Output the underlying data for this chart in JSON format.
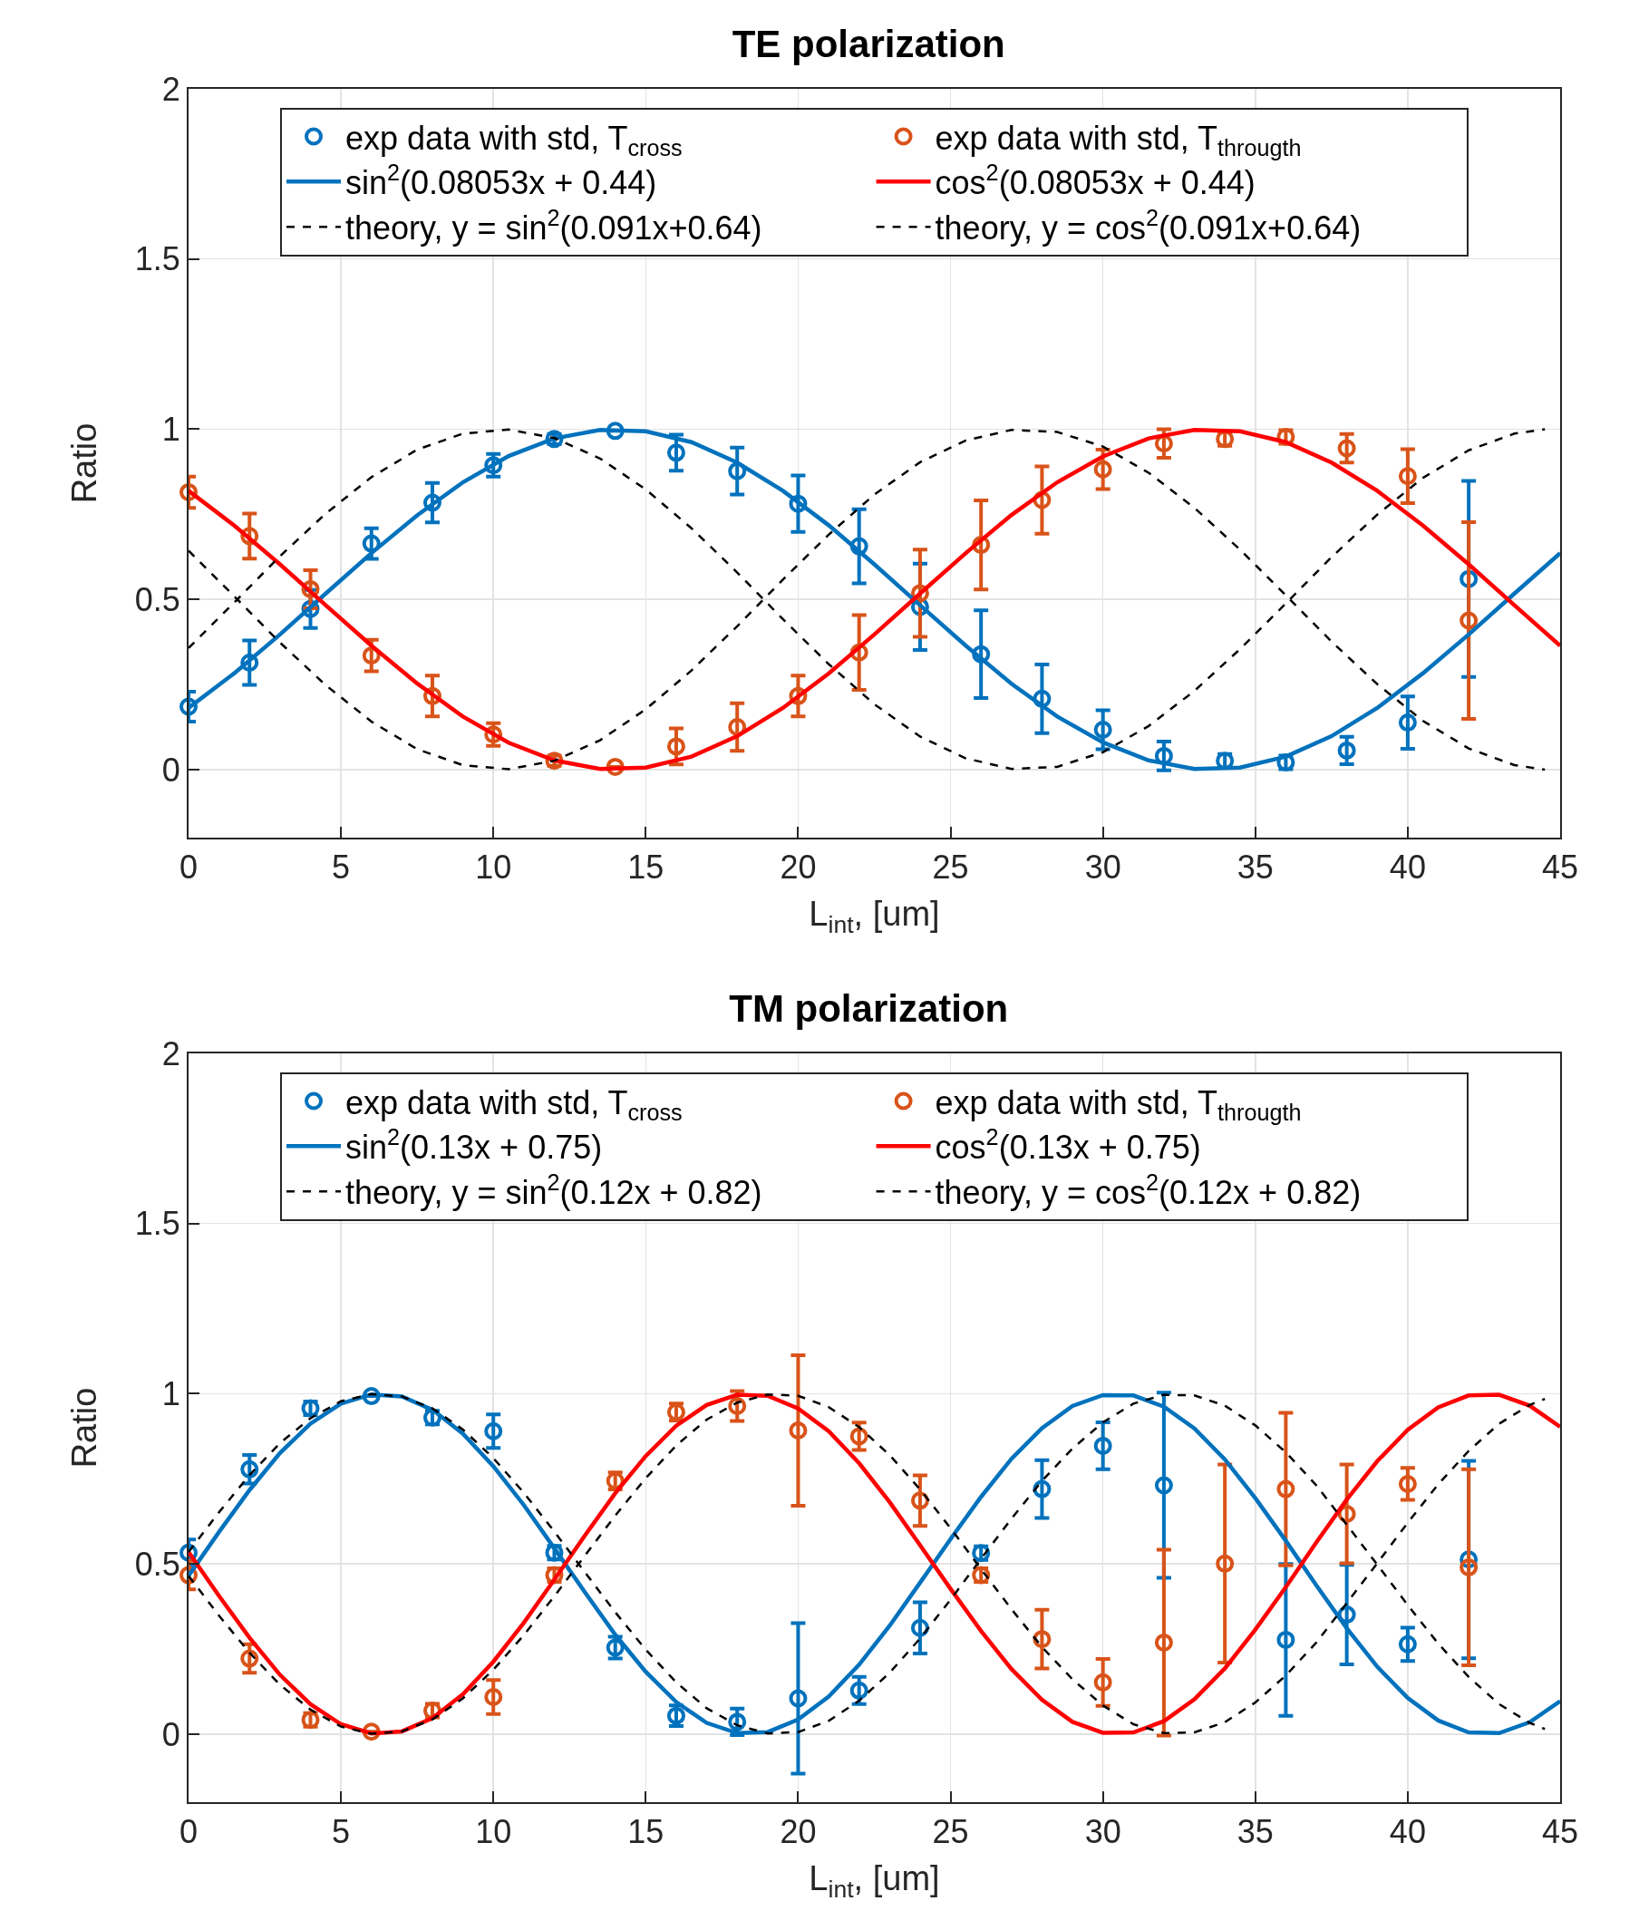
{
  "chart_data": [
    {
      "type": "scatter",
      "title": "TE polarization",
      "xlabel": "L$_{int}$, [um]",
      "ylabel": "Ratio",
      "xlim": [
        0,
        45
      ],
      "xticks": [
        0,
        5,
        10,
        15,
        20,
        25,
        30,
        35,
        40,
        45
      ],
      "ylim": [
        -0.2,
        2
      ],
      "yticks": [
        0,
        0.5,
        1,
        1.5,
        2
      ],
      "grid": true,
      "legend": "top",
      "x": [
        0,
        2,
        4,
        6,
        8,
        10,
        12,
        14,
        16,
        18,
        20,
        22,
        24,
        26,
        28,
        30,
        32,
        34,
        36,
        38,
        40,
        42
      ],
      "series": [
        {
          "name": "exp data with std, T$_{cross}$",
          "color": "#0072bd",
          "marker": "circle",
          "values": [
            0.185,
            0.314,
            0.472,
            0.664,
            0.784,
            0.894,
            0.971,
            0.995,
            0.931,
            0.877,
            0.781,
            0.656,
            0.478,
            0.339,
            0.208,
            0.117,
            0.04,
            0.026,
            0.021,
            0.056,
            0.138,
            0.56
          ],
          "errors": [
            0.044,
            0.065,
            0.056,
            0.045,
            0.058,
            0.033,
            0.015,
            null,
            0.053,
            0.069,
            0.083,
            0.109,
            0.127,
            0.129,
            0.101,
            0.057,
            0.042,
            0.02,
            0.02,
            0.04,
            0.077,
            0.288
          ]
        },
        {
          "name": "exp data with std, T$_{througth}$",
          "color": "#d95319",
          "marker": "circle",
          "values": [
            0.815,
            0.686,
            0.53,
            0.335,
            0.216,
            0.103,
            0.026,
            0.008,
            0.068,
            0.125,
            0.216,
            0.344,
            0.518,
            0.66,
            0.792,
            0.882,
            0.958,
            0.971,
            0.977,
            0.944,
            0.862,
            0.438
          ],
          "errors": [
            0.046,
            0.066,
            0.056,
            0.046,
            0.06,
            0.033,
            0.015,
            null,
            0.053,
            0.07,
            0.06,
            0.11,
            0.128,
            0.131,
            0.099,
            0.058,
            0.042,
            0.02,
            0.02,
            0.042,
            0.079,
            0.289
          ]
        },
        {
          "type": "line",
          "name": "sin$^{2}$(0.08053x + 0.44)",
          "color": "#0072bd",
          "line_style": "solid",
          "x": [
            0,
            1.5,
            3,
            4.5,
            6,
            7.5,
            9,
            10.5,
            12,
            13.5,
            15,
            16.5,
            18,
            19.5,
            21,
            22.5,
            24,
            25.5,
            27,
            28.5,
            30,
            31.5,
            33,
            34.5,
            36,
            37.5,
            39,
            40.5,
            42,
            43.5,
            45
          ],
          "values": [
            0.181,
            0.283,
            0.397,
            0.517,
            0.636,
            0.747,
            0.844,
            0.921,
            0.973,
            0.998,
            0.994,
            0.962,
            0.902,
            0.819,
            0.718,
            0.603,
            0.483,
            0.364,
            0.252,
            0.156,
            0.08,
            0.027,
            0.002,
            0.006,
            0.038,
            0.098,
            0.181,
            0.283,
            0.397,
            0.517,
            0.636
          ]
        },
        {
          "type": "line",
          "name": "cos$^{2}$(0.08053x + 0.44)",
          "color": "#ff0000",
          "line_style": "solid",
          "x": [
            0,
            1.5,
            3,
            4.5,
            6,
            7.5,
            9,
            10.5,
            12,
            13.5,
            15,
            16.5,
            18,
            19.5,
            21,
            22.5,
            24,
            25.5,
            27,
            28.5,
            30,
            31.5,
            33,
            34.5,
            36,
            37.5,
            39,
            40.5,
            42,
            43.5,
            45
          ],
          "values": [
            0.819,
            0.717,
            0.603,
            0.483,
            0.364,
            0.253,
            0.156,
            0.079,
            0.027,
            0.002,
            0.006,
            0.038,
            0.098,
            0.181,
            0.282,
            0.397,
            0.517,
            0.636,
            0.748,
            0.844,
            0.92,
            0.973,
            0.998,
            0.994,
            0.962,
            0.902,
            0.819,
            0.717,
            0.603,
            0.483,
            0.364
          ]
        },
        {
          "type": "line",
          "name": "theory, y = sin$^{2}$(0.091x+0.64)",
          "color": "#000000",
          "line_style": "dashed",
          "x": [
            0,
            1.5,
            3,
            4.5,
            6,
            7.5,
            9,
            10.5,
            12,
            13.5,
            15,
            16.5,
            18,
            19.5,
            21,
            22.5,
            24,
            25.5,
            27,
            28.5,
            30,
            31.5,
            33,
            34.5,
            36,
            37.5,
            39,
            40.5,
            42,
            43.5,
            44.5
          ],
          "values": [
            0.357,
            0.491,
            0.627,
            0.752,
            0.859,
            0.94,
            0.987,
            0.999,
            0.974,
            0.914,
            0.823,
            0.709,
            0.579,
            0.442,
            0.31,
            0.192,
            0.097,
            0.033,
            0.002,
            0.008,
            0.051,
            0.128,
            0.231,
            0.354,
            0.488,
            0.624,
            0.749,
            0.857,
            0.938,
            0.987,
            1
          ]
        },
        {
          "type": "line",
          "name": "theory, y = cos$^{2}$(0.091x+0.64)",
          "color": "#000000",
          "line_style": "dashed",
          "x": [
            0,
            1.5,
            3,
            4.5,
            6,
            7.5,
            9,
            10.5,
            12,
            13.5,
            15,
            16.5,
            18,
            19.5,
            21,
            22.5,
            24,
            25.5,
            27,
            28.5,
            30,
            31.5,
            33,
            34.5,
            36,
            37.5,
            39,
            40.5,
            42,
            43.5,
            44.5
          ],
          "values": [
            0.643,
            0.509,
            0.373,
            0.248,
            0.141,
            0.06,
            0.013,
            0.001,
            0.026,
            0.086,
            0.177,
            0.291,
            0.421,
            0.558,
            0.69,
            0.808,
            0.903,
            0.967,
            0.998,
            0.992,
            0.949,
            0.872,
            0.769,
            0.646,
            0.512,
            0.376,
            0.251,
            0.143,
            0.062,
            0.013,
            0
          ]
        }
      ]
    },
    {
      "type": "scatter",
      "title": "TM polarization",
      "xlabel": "L$_{int}$, [um]",
      "ylabel": "Ratio",
      "xlim": [
        0,
        45
      ],
      "xticks": [
        0,
        5,
        10,
        15,
        20,
        25,
        30,
        35,
        40,
        45
      ],
      "ylim": [
        -0.2,
        2
      ],
      "yticks": [
        0,
        0.5,
        1,
        1.5,
        2
      ],
      "grid": true,
      "legend": "top",
      "x": [
        0,
        2,
        4,
        6,
        8,
        10,
        12,
        14,
        16,
        18,
        20,
        22,
        24,
        26,
        28,
        30,
        32,
        34,
        36,
        38,
        40,
        42
      ],
      "series": [
        {
          "name": "exp data with std, T$_{cross}$",
          "color": "#0072bd",
          "marker": "circle",
          "values": [
            0.533,
            0.778,
            0.957,
            0.993,
            0.93,
            0.89,
            0.533,
            0.254,
            0.054,
            0.036,
            0.105,
            0.128,
            0.312,
            0.532,
            0.72,
            0.847,
            0.731,
            null,
            0.277,
            0.351,
            0.264,
            0.513
          ],
          "errors": [
            0.039,
            0.042,
            0.02,
            null,
            0.02,
            0.049,
            0.02,
            0.032,
            0.03,
            0.039,
            0.221,
            0.04,
            0.075,
            0.02,
            0.085,
            0.069,
            0.272,
            null,
            0.223,
            0.146,
            0.049,
            0.29
          ]
        },
        {
          "name": "exp data with std, T$_{througth}$",
          "color": "#d95319",
          "marker": "circle",
          "values": [
            0.467,
            0.222,
            0.042,
            0.007,
            0.069,
            0.109,
            0.467,
            0.744,
            0.946,
            0.964,
            0.892,
            0.875,
            0.686,
            0.467,
            0.279,
            0.152,
            0.269,
            0.501,
            0.72,
            0.647,
            0.735,
            0.49
          ],
          "errors": [
            0.042,
            0.042,
            0.02,
            null,
            0.02,
            0.05,
            0.02,
            0.025,
            0.025,
            0.044,
            0.221,
            0.04,
            0.074,
            0.02,
            0.086,
            0.069,
            0.273,
            0.291,
            0.224,
            0.145,
            0.047,
            0.288
          ]
        },
        {
          "type": "line",
          "name": "sin$^{2}$(0.13x + 0.75)",
          "color": "#0072bd",
          "line_style": "solid",
          "x": [
            0,
            1,
            2,
            3,
            4,
            5,
            6,
            7,
            8,
            9,
            10,
            11,
            12,
            13,
            14,
            15,
            16,
            17,
            18,
            19,
            20,
            21,
            22,
            23,
            24,
            25,
            26,
            27,
            28,
            29,
            30,
            31,
            32,
            33,
            34,
            35,
            36,
            37,
            38,
            39,
            40,
            41,
            42,
            43,
            44,
            45
          ],
          "values": [
            0.465,
            0.594,
            0.717,
            0.826,
            0.912,
            0.971,
            0.998,
            0.992,
            0.953,
            0.883,
            0.787,
            0.673,
            0.546,
            0.417,
            0.292,
            0.183,
            0.094,
            0.033,
            0.003,
            0.006,
            0.043,
            0.11,
            0.204,
            0.318,
            0.445,
            0.573,
            0.697,
            0.809,
            0.899,
            0.964,
            0.996,
            0.995,
            0.962,
            0.898,
            0.807,
            0.693,
            0.568,
            0.437,
            0.311,
            0.198,
            0.106,
            0.04,
            0.005,
            0.003,
            0.035,
            0.097
          ]
        },
        {
          "type": "line",
          "name": "cos$^{2}$(0.13x + 0.75)",
          "color": "#ff0000",
          "line_style": "solid",
          "x": [
            0,
            1,
            2,
            3,
            4,
            5,
            6,
            7,
            8,
            9,
            10,
            11,
            12,
            13,
            14,
            15,
            16,
            17,
            18,
            19,
            20,
            21,
            22,
            23,
            24,
            25,
            26,
            27,
            28,
            29,
            30,
            31,
            32,
            33,
            34,
            35,
            36,
            37,
            38,
            39,
            40,
            41,
            42,
            43,
            44,
            45
          ],
          "values": [
            0.535,
            0.406,
            0.283,
            0.174,
            0.088,
            0.029,
            0.002,
            0.008,
            0.047,
            0.117,
            0.213,
            0.327,
            0.454,
            0.583,
            0.708,
            0.817,
            0.906,
            0.967,
            0.997,
            0.994,
            0.957,
            0.89,
            0.796,
            0.682,
            0.555,
            0.427,
            0.303,
            0.191,
            0.101,
            0.036,
            0.004,
            0.005,
            0.038,
            0.102,
            0.193,
            0.307,
            0.432,
            0.563,
            0.689,
            0.802,
            0.894,
            0.96,
            0.995,
            0.997,
            0.965,
            0.903
          ]
        },
        {
          "type": "line",
          "name": "theory, y = sin$^{2}$(0.12x + 0.82)",
          "color": "#000000",
          "line_style": "dashed",
          "x": [
            0,
            1,
            2,
            3,
            4,
            5,
            6,
            7,
            8,
            9,
            10,
            11,
            12,
            13,
            14,
            15,
            16,
            17,
            18,
            19,
            20,
            21,
            22,
            23,
            24,
            25,
            26,
            27,
            28,
            29,
            30,
            31,
            32,
            33,
            34,
            35,
            36,
            37,
            38,
            39,
            40,
            41,
            42,
            43,
            44,
            44.5
          ],
          "values": [
            0.535,
            0.652,
            0.761,
            0.855,
            0.928,
            0.978,
            0.999,
            0.992,
            0.957,
            0.895,
            0.811,
            0.709,
            0.595,
            0.476,
            0.358,
            0.248,
            0.152,
            0.076,
            0.026,
            0.002,
            0.006,
            0.039,
            0.098,
            0.18,
            0.281,
            0.395,
            0.515,
            0.633,
            0.744,
            0.839,
            0.916,
            0.971,
            0.997,
            0.995,
            0.965,
            0.907,
            0.828,
            0.731,
            0.615,
            0.498,
            0.379,
            0.266,
            0.168,
            0.088,
            0.033,
            0.015
          ]
        },
        {
          "type": "line",
          "name": "theory, y = cos$^{2}$(0.12x + 0.82)",
          "color": "#000000",
          "line_style": "dashed",
          "x": [
            0,
            1,
            2,
            3,
            4,
            5,
            6,
            7,
            8,
            9,
            10,
            11,
            12,
            13,
            14,
            15,
            16,
            17,
            18,
            19,
            20,
            21,
            22,
            23,
            24,
            25,
            26,
            27,
            28,
            29,
            30,
            31,
            32,
            33,
            34,
            35,
            36,
            37,
            38,
            39,
            40,
            41,
            42,
            43,
            44,
            44.5
          ],
          "values": [
            0.465,
            0.348,
            0.239,
            0.145,
            0.072,
            0.022,
            0.001,
            0.008,
            0.043,
            0.105,
            0.189,
            0.291,
            0.405,
            0.524,
            0.642,
            0.752,
            0.848,
            0.924,
            0.974,
            0.998,
            0.994,
            0.961,
            0.902,
            0.82,
            0.719,
            0.605,
            0.485,
            0.367,
            0.256,
            0.161,
            0.084,
            0.029,
            0.003,
            0.005,
            0.035,
            0.093,
            0.172,
            0.269,
            0.385,
            0.502,
            0.621,
            0.734,
            0.832,
            0.912,
            0.967,
            0.985
          ]
        }
      ]
    }
  ]
}
